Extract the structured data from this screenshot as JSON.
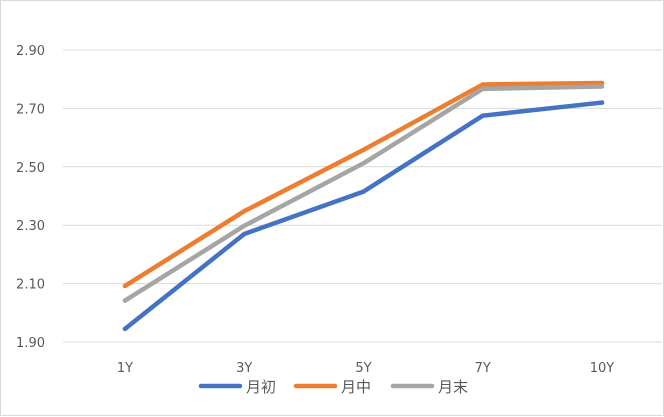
{
  "chart_data": {
    "type": "line",
    "categories": [
      "1Y",
      "3Y",
      "5Y",
      "7Y",
      "10Y"
    ],
    "yTickLabels": [
      "1.90",
      "2.10",
      "2.30",
      "2.50",
      "2.70",
      "2.90"
    ],
    "ylim": [
      1.9,
      2.9
    ],
    "yticks": [
      1.9,
      2.1,
      2.3,
      2.5,
      2.7,
      2.9
    ],
    "grid": true,
    "legend_position": "bottom",
    "series": [
      {
        "name": "月初",
        "color": "#4472C4",
        "values": [
          1.945,
          2.27,
          2.415,
          2.675,
          2.72
        ]
      },
      {
        "name": "月中",
        "color": "#ED7D31",
        "values": [
          2.092,
          2.348,
          2.558,
          2.782,
          2.787
        ]
      },
      {
        "name": "月末",
        "color": "#A5A5A5",
        "values": [
          2.042,
          2.298,
          2.512,
          2.767,
          2.775
        ]
      }
    ]
  }
}
